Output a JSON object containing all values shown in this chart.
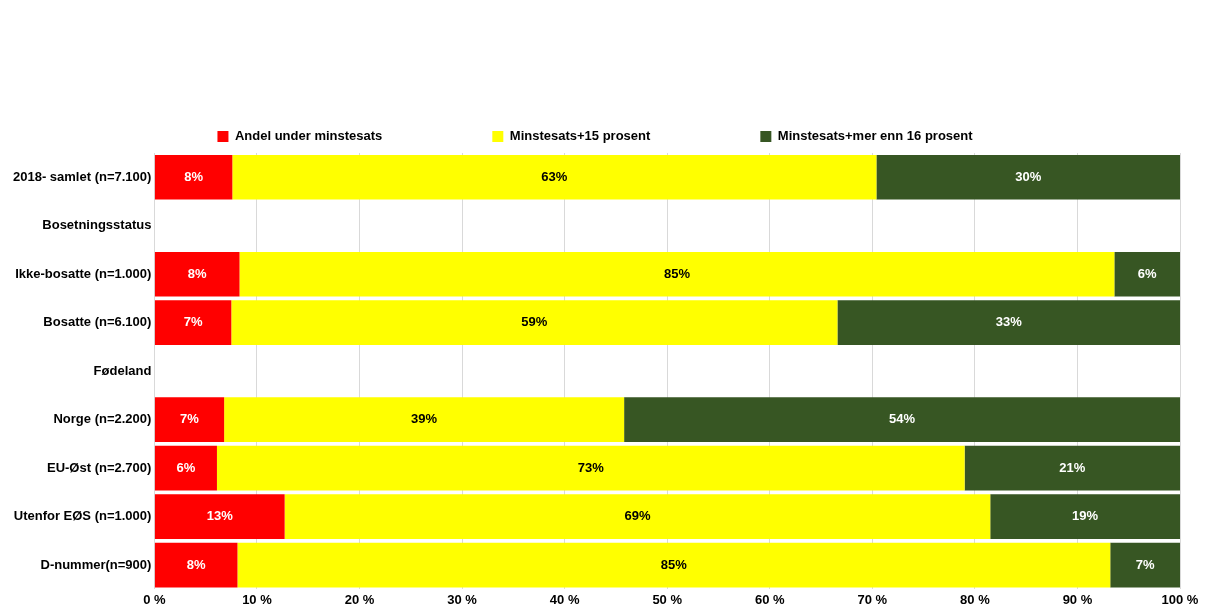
{
  "chart_data": {
    "type": "bar",
    "orientation": "horizontal",
    "stacked": true,
    "categories": [
      "2018- samlet (n=7.100)",
      "Bosetningsstatus",
      "Ikke-bosatte (n=1.000)",
      "Bosatte (n=6.100)",
      "Fødeland",
      "Norge (n=2.200)",
      "EU-Øst (n=2.700)",
      "Utenfor EØS (n=1.000)",
      "D-nummer(n=900)"
    ],
    "series": [
      {
        "name": "Andel under minstesats",
        "color": "#ff0000",
        "values": [
          7.6,
          null,
          8.3,
          7.5,
          null,
          6.8,
          6.1,
          12.7,
          8.1
        ],
        "value_labels": [
          "8%",
          null,
          "8%",
          "7%",
          null,
          "7%",
          "6%",
          "13%",
          "8%"
        ]
      },
      {
        "name": "Minstesats+15 prosent",
        "color": "#ffff00",
        "values": [
          62.8,
          null,
          85.3,
          59.1,
          null,
          39.0,
          72.9,
          68.8,
          85.1
        ],
        "value_labels": [
          "63%",
          null,
          "85%",
          "59%",
          null,
          "39%",
          "73%",
          "69%",
          "85%"
        ]
      },
      {
        "name": "Minstesats+mer enn 16 prosent",
        "color": "#375623",
        "values": [
          29.6,
          null,
          6.4,
          33.4,
          null,
          54.2,
          21.0,
          18.5,
          6.8
        ],
        "value_labels": [
          "30%",
          null,
          "6%",
          "33%",
          null,
          "54%",
          "21%",
          "19%",
          "7%"
        ]
      }
    ],
    "xlim": [
      0,
      100
    ],
    "xticks": [
      {
        "value": 0,
        "label": "0 %"
      },
      {
        "value": 10,
        "label": "10 %"
      },
      {
        "value": 20,
        "label": "20 %"
      },
      {
        "value": 30,
        "label": "30 %"
      },
      {
        "value": 40,
        "label": "40 %"
      },
      {
        "value": 50,
        "label": "50 %"
      },
      {
        "value": 60,
        "label": "60 %"
      },
      {
        "value": 70,
        "label": "70 %"
      },
      {
        "value": 80,
        "label": "80 %"
      },
      {
        "value": 90,
        "label": "90 %"
      },
      {
        "value": 100,
        "label": "100 %"
      }
    ],
    "grid": "x",
    "legend": "top"
  }
}
